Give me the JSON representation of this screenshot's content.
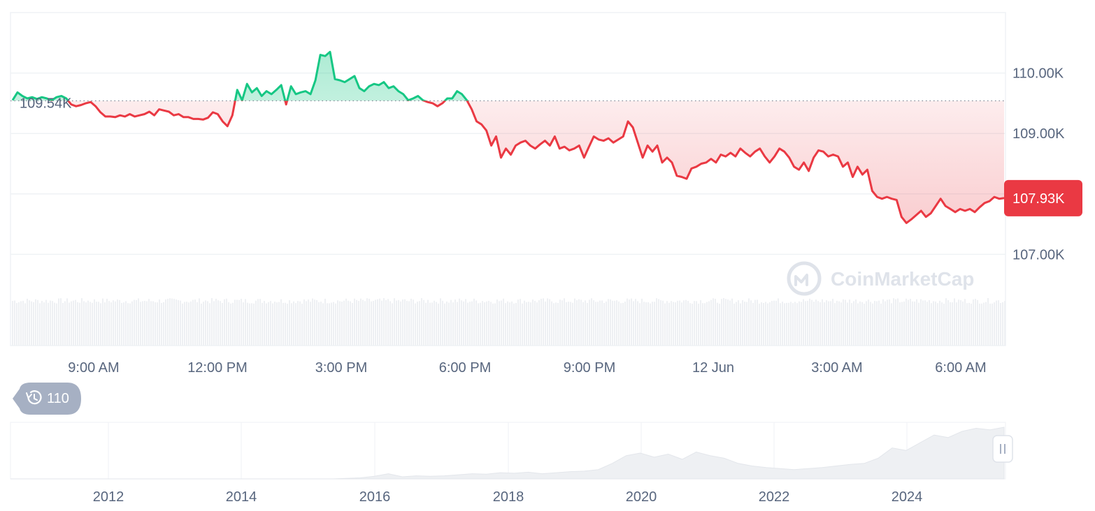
{
  "chart_data": [
    {
      "type": "line",
      "ylim": [
        106.3,
        111.0
      ],
      "y_ticks": [
        {
          "value": 110.0,
          "label": "110.00K"
        },
        {
          "value": 109.0,
          "label": "109.00K"
        },
        {
          "value": 107.0,
          "label": "107.00K"
        }
      ],
      "x_ticks": [
        "9:00 AM",
        "12:00 PM",
        "3:00 PM",
        "6:00 PM",
        "9:00 PM",
        "12 Jun",
        "3:00 AM",
        "6:00 AM"
      ],
      "reference": {
        "value": 109.54,
        "label": "109.54K"
      },
      "current_price": {
        "value": 107.93,
        "label": "107.93K"
      },
      "grid": true,
      "colors": {
        "up": "#16c784",
        "down": "#ea3943",
        "reference": "#7a8090"
      },
      "series": [
        {
          "values": [
            109.55,
            109.68,
            109.62,
            109.58,
            109.6,
            109.57,
            109.6,
            109.58,
            109.55,
            109.6,
            109.62,
            109.58,
            109.48,
            109.45,
            109.47,
            109.5,
            109.52,
            109.45,
            109.35,
            109.28,
            109.28,
            109.27,
            109.3,
            109.28,
            109.32,
            109.28,
            109.3,
            109.32,
            109.36,
            109.3,
            109.4,
            109.38,
            109.36,
            109.3,
            109.32,
            109.27,
            109.27,
            109.24,
            109.24,
            109.23,
            109.26,
            109.35,
            109.32,
            109.2,
            109.12,
            109.3,
            109.72,
            109.55,
            109.82,
            109.68,
            109.75,
            109.62,
            109.7,
            109.65,
            109.72,
            109.8,
            109.48,
            109.78,
            109.65,
            109.68,
            109.7,
            109.65,
            109.88,
            110.3,
            110.28,
            110.35,
            109.9,
            109.88,
            109.85,
            109.9,
            109.95,
            109.75,
            109.7,
            109.78,
            109.82,
            109.8,
            109.85,
            109.75,
            109.78,
            109.7,
            109.65,
            109.55,
            109.58,
            109.62,
            109.55,
            109.52,
            109.5,
            109.45,
            109.5,
            109.58,
            109.58,
            109.7,
            109.65,
            109.55,
            109.4,
            109.2,
            109.15,
            109.05,
            108.8,
            108.95,
            108.6,
            108.75,
            108.65,
            108.8,
            108.85,
            108.88,
            108.8,
            108.75,
            108.82,
            108.88,
            108.8,
            108.95,
            108.75,
            108.78,
            108.72,
            108.75,
            108.8,
            108.6,
            108.78,
            108.95,
            108.9,
            108.88,
            108.92,
            108.85,
            108.9,
            108.95,
            109.2,
            109.1,
            108.85,
            108.6,
            108.8,
            108.7,
            108.8,
            108.52,
            108.6,
            108.52,
            108.3,
            108.28,
            108.25,
            108.42,
            108.45,
            108.5,
            108.52,
            108.58,
            108.52,
            108.65,
            108.62,
            108.68,
            108.62,
            108.75,
            108.68,
            108.62,
            108.7,
            108.75,
            108.62,
            108.52,
            108.62,
            108.75,
            108.7,
            108.6,
            108.45,
            108.4,
            108.52,
            108.38,
            108.6,
            108.72,
            108.7,
            108.62,
            108.65,
            108.62,
            108.45,
            108.52,
            108.28,
            108.45,
            108.32,
            108.4,
            108.05,
            107.95,
            107.92,
            107.95,
            107.92,
            107.9,
            107.62,
            107.52,
            107.58,
            107.65,
            107.72,
            107.62,
            107.68,
            107.8,
            107.92,
            107.8,
            107.75,
            107.7,
            107.75,
            107.72,
            107.75,
            107.7,
            107.78,
            107.85,
            107.88,
            107.95,
            107.92,
            107.93
          ]
        }
      ]
    },
    {
      "type": "area",
      "x_ticks": [
        "2012",
        "2014",
        "2016",
        "2018",
        "2020",
        "2022",
        "2024"
      ],
      "values": [
        0,
        0,
        0,
        0,
        0,
        0,
        0,
        0,
        0,
        0,
        0,
        0,
        0,
        0,
        0,
        0,
        0,
        0,
        0,
        0,
        0,
        0,
        0,
        0,
        0.01,
        0.02,
        0.05,
        0.1,
        0.04,
        0.06,
        0.05,
        0.06,
        0.08,
        0.1,
        0.09,
        0.12,
        0.11,
        0.13,
        0.1,
        0.12,
        0.14,
        0.15,
        0.18,
        0.3,
        0.45,
        0.5,
        0.42,
        0.48,
        0.38,
        0.52,
        0.45,
        0.4,
        0.3,
        0.25,
        0.22,
        0.2,
        0.18,
        0.2,
        0.22,
        0.25,
        0.28,
        0.3,
        0.4,
        0.6,
        0.55,
        0.7,
        0.85,
        0.8,
        0.92,
        0.98,
        0.95,
        1.0
      ]
    }
  ],
  "controls": {
    "history_count": "110",
    "history_icon": "history-icon",
    "range_handle_icon": "pause-icon"
  },
  "watermark": "CoinMarketCap"
}
